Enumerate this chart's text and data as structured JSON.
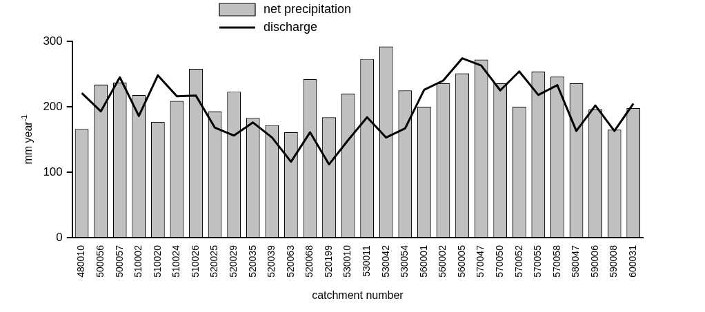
{
  "chart_data": {
    "type": "bar",
    "xlabel": "catchment number",
    "ylabel": "mm year$^{-1}$",
    "categories": [
      "480010",
      "500056",
      "500057",
      "510002",
      "510020",
      "510024",
      "510026",
      "520025",
      "520029",
      "520035",
      "520039",
      "520063",
      "520068",
      "520199",
      "530010",
      "530011",
      "530042",
      "530054",
      "560001",
      "560002",
      "560005",
      "570047",
      "570050",
      "570052",
      "570055",
      "570058",
      "580047",
      "590006",
      "590008",
      "600031"
    ],
    "series": [
      {
        "name": "net precipitation",
        "color": "#c0c0c0",
        "values": [
          166,
          234,
          237,
          218,
          177,
          209,
          258,
          193,
          223,
          183,
          172,
          161,
          242,
          184,
          220,
          273,
          292,
          225,
          200,
          236,
          251,
          272,
          236,
          200,
          254,
          246,
          236,
          196,
          165,
          198
        ]
      },
      {
        "name": "discharge",
        "type": "line",
        "color": "#000000",
        "values": [
          221,
          193,
          245,
          186,
          248,
          216,
          217,
          168,
          156,
          176,
          153,
          116,
          161,
          112,
          149,
          184,
          153,
          167,
          226,
          240,
          274,
          263,
          225,
          254,
          218,
          233,
          163,
          202,
          163,
          205
        ]
      }
    ],
    "ylim": [
      0,
      300
    ],
    "yticks": [
      0,
      100,
      200,
      300
    ],
    "grid": false,
    "legend": "top",
    "marker": "none",
    "line_style": "solid"
  }
}
